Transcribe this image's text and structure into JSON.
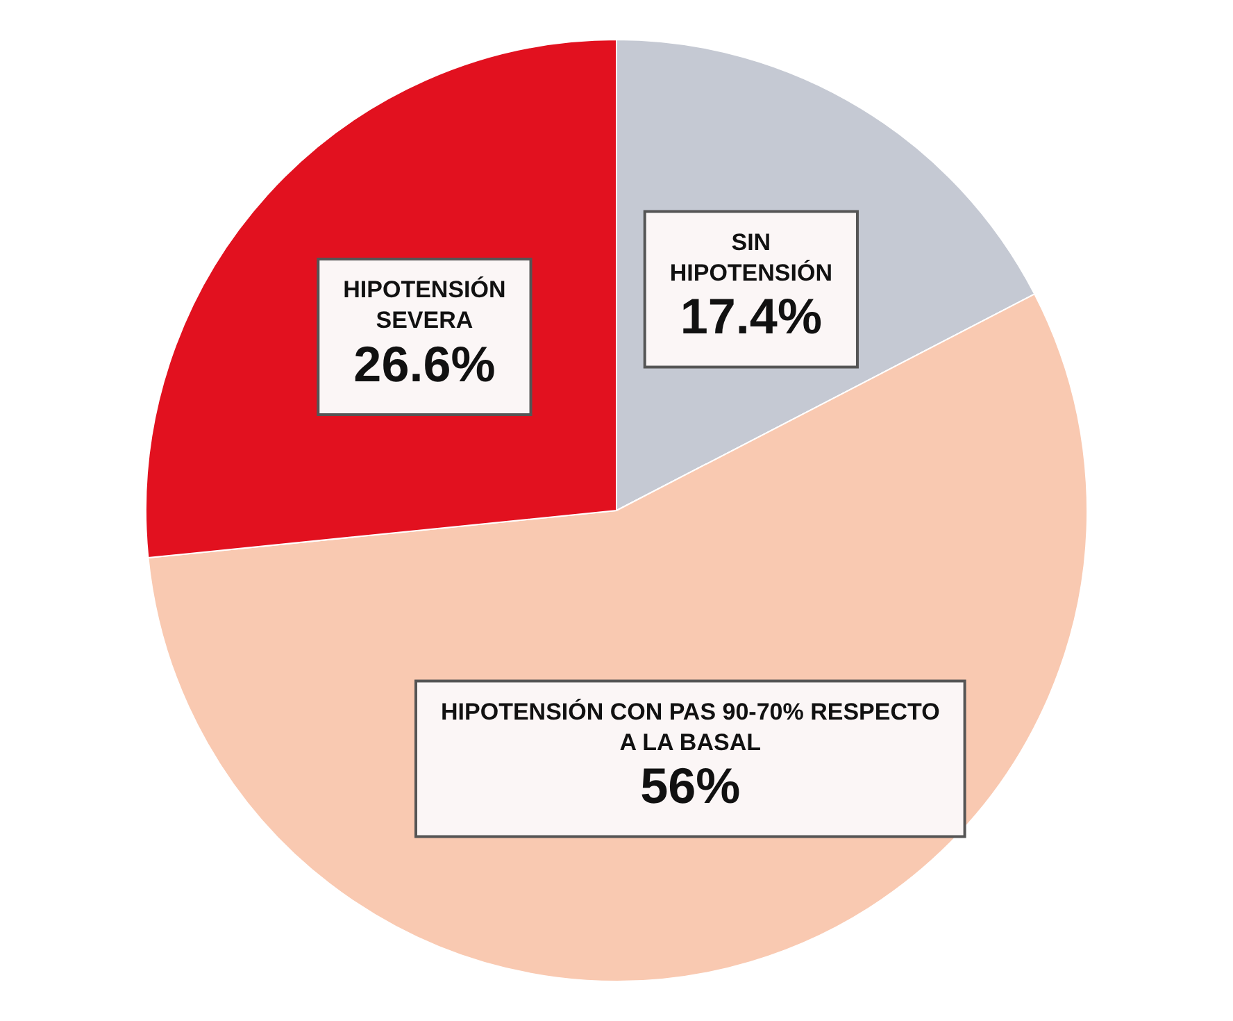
{
  "chart_data": {
    "type": "pie",
    "categories": [
      "SIN HIPOTENSIÓN",
      "HIPOTENSIÓN CON PAS 90-70% RESPECTO A LA BASAL",
      "HIPOTENSIÓN SEVERA"
    ],
    "values": [
      17.4,
      56,
      26.6
    ],
    "value_labels": [
      "17.4%",
      "56%",
      "26.6%"
    ],
    "colors": [
      "#c5c9d3",
      "#f9c9b1",
      "#e2111f"
    ],
    "legend": false
  }
}
